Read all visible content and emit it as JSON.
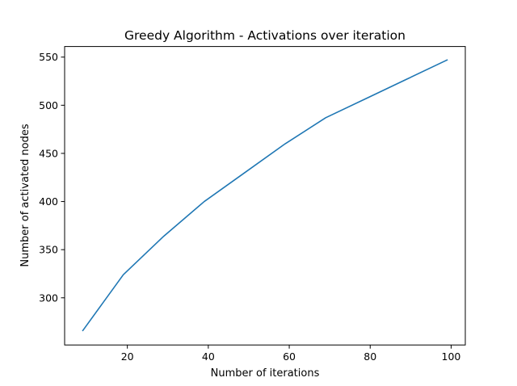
{
  "chart_data": {
    "type": "line",
    "title": "Greedy Algorithm - Activations over iteration",
    "xlabel": "Number of iterations",
    "ylabel": "Number of activated nodes",
    "xlim": [
      4.5,
      103.5
    ],
    "ylim": [
      251,
      561
    ],
    "xticks": [
      20,
      40,
      60,
      80,
      100
    ],
    "yticks": [
      300,
      350,
      400,
      450,
      500,
      550
    ],
    "grid": false,
    "series": [
      {
        "name": "activations",
        "color": "#1f77b4",
        "x": [
          9,
          19,
          29,
          39,
          49,
          59,
          69,
          79,
          89,
          99
        ],
        "y": [
          266,
          324,
          364,
          400,
          430,
          460,
          487,
          507,
          527,
          547
        ]
      }
    ]
  }
}
